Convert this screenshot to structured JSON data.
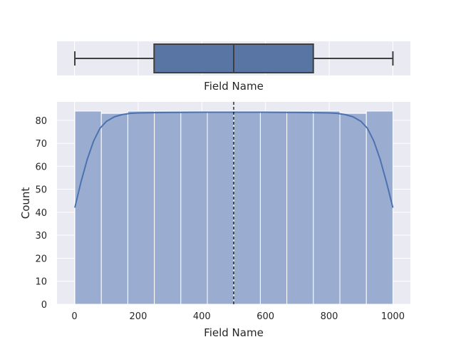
{
  "chart_data": [
    {
      "type": "box",
      "xlabel": "Field Name",
      "whisker_low": 1,
      "q1": 250,
      "median": 500,
      "q3": 750,
      "whisker_high": 1000,
      "xlim": [
        -55,
        1055
      ],
      "grid": true,
      "colors": {
        "box_fill": "#5875a4",
        "box_line": "#3f3f3f",
        "background": "#eaeaf2",
        "grid": "#ffffff"
      }
    },
    {
      "type": "bar",
      "subtype": "histogram_with_kde",
      "xlabel": "Field Name",
      "ylabel": "Count",
      "bin_edges": [
        1,
        84.25,
        167.5,
        250.75,
        334,
        417.25,
        500.5,
        583.75,
        667,
        750.25,
        833.5,
        916.75,
        1000
      ],
      "values": [
        84,
        83,
        84,
        84,
        84,
        84,
        84,
        84,
        84,
        84,
        83,
        84
      ],
      "kde": {
        "x": [
          1,
          20,
          40,
          60,
          80,
          100,
          125,
          150,
          175,
          200,
          250,
          300,
          400,
          500,
          600,
          700,
          750,
          800,
          825,
          850,
          875,
          900,
          920,
          940,
          960,
          980,
          1000
        ],
        "y": [
          42,
          53,
          63,
          71,
          76.5,
          79.5,
          81.5,
          82.5,
          83,
          83.2,
          83.3,
          83.4,
          83.5,
          83.5,
          83.5,
          83.4,
          83.3,
          83.2,
          83,
          82.5,
          81.5,
          79.5,
          76.5,
          71,
          63,
          53,
          42
        ]
      },
      "mean_line_x": 500,
      "xlim": [
        -55,
        1055
      ],
      "ylim": [
        0,
        88
      ],
      "xticks": [
        0,
        200,
        400,
        600,
        800,
        1000
      ],
      "yticks": [
        0,
        10,
        20,
        30,
        40,
        50,
        60,
        70,
        80
      ],
      "grid": true,
      "colors": {
        "bar_fill": "#9aadd0",
        "bar_edge": "#ffffff",
        "kde_line": "#4c72b0",
        "mean_line": "#000000",
        "background": "#eaeaf2",
        "grid": "#ffffff"
      }
    }
  ]
}
